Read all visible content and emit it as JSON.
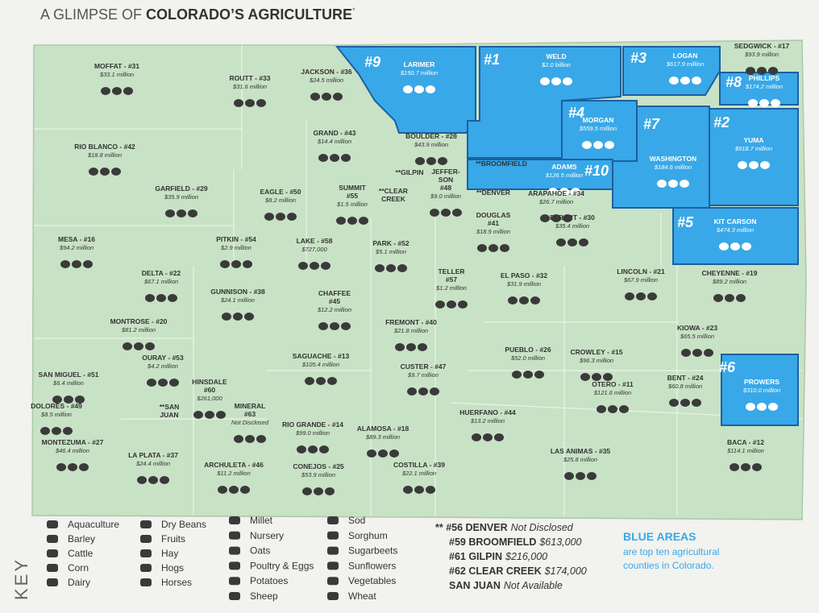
{
  "header": {
    "title": [
      "A GLIMPSE OF ",
      "COLORADO’S AGRICULTURE",
      "*"
    ]
  },
  "counties": [
    {
      "name": [
        "MOFFAT - #31"
      ],
      "value": "$33.1 million"
    },
    {
      "name": [
        "JACKSON - #36"
      ],
      "value": "$24.5 million"
    },
    {
      "name": [
        "ROUTT - #33"
      ],
      "value": "$31.6 million"
    },
    {
      "name": [
        "LARIMER"
      ],
      "value": "$150.7 million",
      "rank": "#9"
    },
    {
      "name": [
        "WELD"
      ],
      "value": "$2.0 billion",
      "rank": "#1"
    },
    {
      "name": [
        "LOGAN"
      ],
      "value": "$617.9 million",
      "rank": "#3"
    },
    {
      "name": [
        "SEDGWICK - #17"
      ],
      "value": "$93.9 million"
    },
    {
      "name": [
        "PHILLIPS"
      ],
      "value": "$174.2 million",
      "rank": "#8"
    },
    {
      "name": [
        "MORGAN"
      ],
      "value": "$559.5 million",
      "rank": "#4"
    },
    {
      "name": [
        "YUMA"
      ],
      "value": "$918.7 million",
      "rank": "#2"
    },
    {
      "name": [
        "WASHINGTON"
      ],
      "value": "$184.6 million",
      "rank": "#7"
    },
    {
      "name": [
        "RIO BLANCO - #42"
      ],
      "value": "$18.8 million"
    },
    {
      "name": [
        "GRAND - #43"
      ],
      "value": "$14.4 million"
    },
    {
      "name": [
        "BOULDER - #28"
      ],
      "value": "$43.9 million"
    },
    {
      "name": [
        "**GILPIN"
      ]
    },
    {
      "name": [
        "**BROOMFIELD"
      ]
    },
    {
      "name": [
        "ADAMS"
      ],
      "value": "$126.5 million",
      "rank": "#10"
    },
    {
      "name": [
        "GARFIELD - #29"
      ],
      "value": "$35.9 million"
    },
    {
      "name": [
        "EAGLE - #50"
      ],
      "value": "$8.2 million"
    },
    {
      "name": [
        "SUMMIT",
        "#55"
      ],
      "value": "$1.5 million"
    },
    {
      "name": [
        "**CLEAR",
        "CREEK"
      ]
    },
    {
      "name": [
        "JEFFER-",
        "SON",
        "#48"
      ],
      "value": "$9.0 million"
    },
    {
      "name": [
        "**DENVER"
      ]
    },
    {
      "name": [
        "ARAPAHOE - #34"
      ],
      "value": "$26.7 million"
    },
    {
      "name": [
        "ELBERT - #30"
      ],
      "value": "$35.4 million"
    },
    {
      "name": [
        "DOUGLAS",
        "#41"
      ],
      "value": "$18.9 million"
    },
    {
      "name": [
        "KIT CARSON"
      ],
      "value": "$474.3 million",
      "rank": "#5"
    },
    {
      "name": [
        "MESA - #16"
      ],
      "value": "$94.2 million"
    },
    {
      "name": [
        "PITKIN - #54"
      ],
      "value": "$2.9 million"
    },
    {
      "name": [
        "LAKE - #58"
      ],
      "value": "$727,000"
    },
    {
      "name": [
        "PARK - #52"
      ],
      "value": "$5.1 million"
    },
    {
      "name": [
        "DELTA - #22"
      ],
      "value": "$67.1 million"
    },
    {
      "name": [
        "TELLER",
        "#57"
      ],
      "value": "$1.2 million"
    },
    {
      "name": [
        "EL PASO - #32"
      ],
      "value": "$31.9 million"
    },
    {
      "name": [
        "LINCOLN - #21"
      ],
      "value": "$67.9 million"
    },
    {
      "name": [
        "CHEYENNE - #19"
      ],
      "value": "$89.2 million"
    },
    {
      "name": [
        "GUNNISON - #38"
      ],
      "value": "$24.1 million"
    },
    {
      "name": [
        "CHAFFEE",
        "#45"
      ],
      "value": "$12.2 million"
    },
    {
      "name": [
        "MONTROSE - #20"
      ],
      "value": "$81.2 million"
    },
    {
      "name": [
        "FREMONT - #40"
      ],
      "value": "$21.8 million"
    },
    {
      "name": [
        "KIOWA - #23"
      ],
      "value": "$65.5 million"
    },
    {
      "name": [
        "OURAY - #53"
      ],
      "value": "$4.2 million"
    },
    {
      "name": [
        "SAGUACHE - #13"
      ],
      "value": "$105.4 million"
    },
    {
      "name": [
        "PUEBLO - #26"
      ],
      "value": "$52.0 million"
    },
    {
      "name": [
        "CROWLEY - #15"
      ],
      "value": "$96.3 million"
    },
    {
      "name": [
        "CUSTER - #47"
      ],
      "value": "$9.7 million"
    },
    {
      "name": [
        "SAN MIGUEL - #51"
      ],
      "value": "$6.4 million"
    },
    {
      "name": [
        "HINSDALE",
        "#60"
      ],
      "value": "$261,000"
    },
    {
      "name": [
        "BENT - #24"
      ],
      "value": "$60.8 million"
    },
    {
      "name": [
        "PROWERS"
      ],
      "value": "$310.0 million",
      "rank": "#6"
    },
    {
      "name": [
        "OTERO - #11"
      ],
      "value": "$121.6 million"
    },
    {
      "name": [
        "DOLORES - #49"
      ],
      "value": "$8.5 million"
    },
    {
      "name": [
        "**SAN",
        "JUAN"
      ]
    },
    {
      "name": [
        "MINERAL",
        "#63"
      ],
      "value": "Not Disclosed"
    },
    {
      "name": [
        "HUERFANO - #44"
      ],
      "value": "$13.2 million"
    },
    {
      "name": [
        "RIO GRANDE - #14"
      ],
      "value": "$99.0 million"
    },
    {
      "name": [
        "ALAMOSA - #18"
      ],
      "value": "$89.3 million"
    },
    {
      "name": [
        "MONTEZUMA - #27"
      ],
      "value": "$46.4 million"
    },
    {
      "name": [
        "BACA - #12"
      ],
      "value": "$114.1 million"
    },
    {
      "name": [
        "LA PLATA - #37"
      ],
      "value": "$24.4 million"
    },
    {
      "name": [
        "LAS ANIMAS - #35"
      ],
      "value": "$25.8 million"
    },
    {
      "name": [
        "ARCHULETA - #46"
      ],
      "value": "$11.2 million"
    },
    {
      "name": [
        "CONEJOS - #25"
      ],
      "value": "$53.9 million"
    },
    {
      "name": [
        "COSTILLA - #39"
      ],
      "value": "$22.1 million"
    }
  ],
  "key": {
    "title": "KEY",
    "items": [
      "Aquaculture",
      "Barley",
      "Cattle",
      "Corn",
      "Dairy",
      "Dry Beans",
      "Fruits",
      "Hay",
      "Hogs",
      "Horses",
      "Millet",
      "Nursery",
      "Oats",
      "Poultry & Eggs",
      "Potatoes",
      "Sheep",
      "Sod",
      "Sorghum",
      "Sugarbeets",
      "Sunflowers",
      "Vegetables",
      "Wheat"
    ]
  },
  "notes": [
    {
      "label": "** #56 DENVER",
      "value": "Not Disclosed"
    },
    {
      "label": "#59 BROOMFIELD",
      "value": "$613,000"
    },
    {
      "label": "#61 GILPIN",
      "value": "$216,000"
    },
    {
      "label": "#62 CLEAR CREEK",
      "value": "$174,000"
    },
    {
      "label": "SAN JUAN",
      "value": "Not Available"
    }
  ],
  "legend": {
    "title": "BLUE AREAS",
    "text": [
      "are top ten agricultural",
      "counties in Colorado."
    ]
  }
}
